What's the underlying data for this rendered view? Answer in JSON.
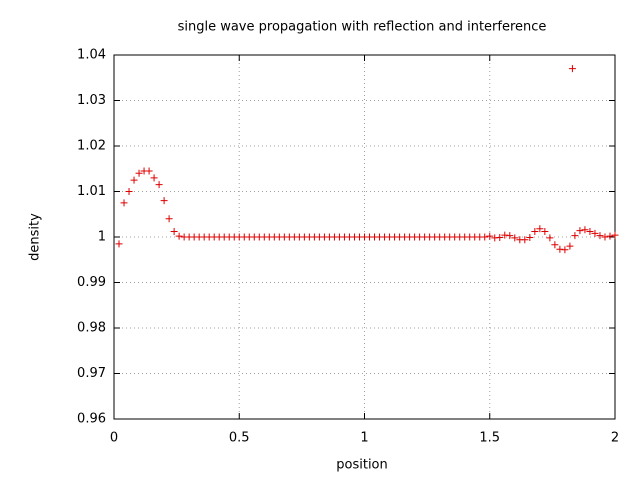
{
  "chart_data": {
    "type": "scatter",
    "title": "single wave propagation with reflection and interference",
    "x_label": "position",
    "y_label": "density",
    "color": "#dd0000",
    "xlim": [
      0,
      2
    ],
    "ylim": [
      0.96,
      1.04
    ],
    "xticks": [
      0,
      0.5,
      1,
      1.5,
      2
    ],
    "yticks": [
      0.96,
      0.97,
      0.98,
      0.99,
      1,
      1.01,
      1.02,
      1.03,
      1.04
    ],
    "grid": true,
    "x": [
      0.02,
      0.04,
      0.06,
      0.08,
      0.1,
      0.12,
      0.14,
      0.16,
      0.18,
      0.2,
      0.22,
      0.24,
      0.26,
      0.28,
      0.3,
      0.32,
      0.34,
      0.36,
      0.38,
      0.4,
      0.42,
      0.44,
      0.46,
      0.48,
      0.5,
      0.52,
      0.54,
      0.56,
      0.58,
      0.6,
      0.62,
      0.64,
      0.66,
      0.68,
      0.7,
      0.72,
      0.74,
      0.76,
      0.78,
      0.8,
      0.82,
      0.84,
      0.86,
      0.88,
      0.9,
      0.92,
      0.94,
      0.96,
      0.98,
      1,
      1.02,
      1.04,
      1.06,
      1.08,
      1.1,
      1.12,
      1.14,
      1.16,
      1.18,
      1.2,
      1.22,
      1.24,
      1.26,
      1.28,
      1.3,
      1.32,
      1.34,
      1.36,
      1.38,
      1.4,
      1.42,
      1.44,
      1.46,
      1.48,
      1.5,
      1.52,
      1.54,
      1.56,
      1.58,
      1.6,
      1.62,
      1.64,
      1.66,
      1.68,
      1.7,
      1.72,
      1.74,
      1.76,
      1.78,
      1.8,
      1.82,
      1.83,
      1.84,
      1.86,
      1.88,
      1.9,
      1.92,
      1.94,
      1.96,
      1.98,
      2
    ],
    "values": [
      0.9985,
      1.0075,
      1.01,
      1.0125,
      1.014,
      1.0145,
      1.0145,
      1.013,
      1.0115,
      1.008,
      1.004,
      1.0012,
      1.0002,
      1,
      1,
      1,
      1,
      1,
      1,
      1,
      1,
      1,
      1,
      1,
      1,
      1,
      1,
      1,
      1,
      1,
      1,
      1,
      1,
      1,
      1,
      1,
      1,
      1,
      1,
      1,
      1,
      1,
      1,
      1,
      1,
      1,
      1,
      1,
      1,
      1,
      1,
      1,
      1,
      1,
      1,
      1,
      1,
      1,
      1,
      1,
      1,
      1,
      1,
      1,
      1,
      1,
      1,
      1,
      1,
      1,
      1,
      1,
      1,
      1,
      1.0002,
      0.9998,
      0.9999,
      1.0004,
      1.0003,
      0.9998,
      0.9994,
      0.9994,
      0.9999,
      1.0012,
      1.0018,
      1.0012,
      0.9998,
      0.9983,
      0.9973,
      0.9972,
      0.998,
      1.037,
      1.0003,
      1.0014,
      1.0016,
      1.0012,
      1.0008,
      1.0003,
      1,
      1.0002,
      1.0004
    ]
  }
}
